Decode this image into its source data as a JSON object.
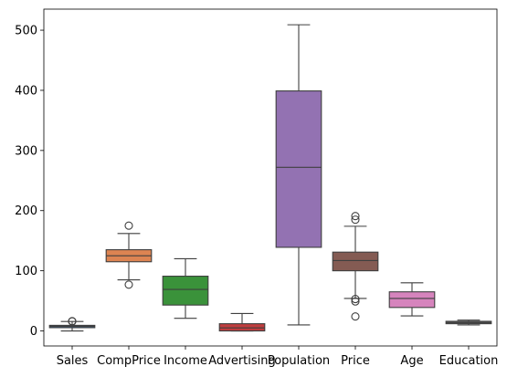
{
  "chart_data": {
    "type": "boxplot",
    "title": "",
    "xlabel": "",
    "ylabel": "",
    "ylim": [
      -25,
      535
    ],
    "yticks": [
      0,
      100,
      200,
      300,
      400,
      500
    ],
    "ytick_labels": [
      "0",
      "100",
      "200",
      "300",
      "400",
      "500"
    ],
    "grid": false,
    "legend": "none",
    "categories": [
      "Sales",
      "CompPrice",
      "Income",
      "Advertising",
      "Population",
      "Price",
      "Age",
      "Education"
    ],
    "boxes": [
      {
        "name": "Sales",
        "color": "#3a6690",
        "whislo": 0,
        "q1": 5.4,
        "med": 7.5,
        "q3": 9.3,
        "whishi": 15.7,
        "fliers": [
          16.3,
          15.8
        ]
      },
      {
        "name": "CompPrice",
        "color": "#dd8452",
        "whislo": 85,
        "q1": 115,
        "med": 125,
        "q3": 135,
        "whishi": 162,
        "fliers": [
          175,
          77
        ]
      },
      {
        "name": "Income",
        "color": "#3a923a",
        "whislo": 21,
        "q1": 43,
        "med": 69,
        "q3": 91,
        "whishi": 120,
        "fliers": []
      },
      {
        "name": "Advertising",
        "color": "#c03d3e",
        "whislo": 0,
        "q1": 0,
        "med": 5,
        "q3": 12,
        "whishi": 29,
        "fliers": []
      },
      {
        "name": "Population",
        "color": "#9372b2",
        "whislo": 10,
        "q1": 139,
        "med": 272,
        "q3": 399,
        "whishi": 509,
        "fliers": []
      },
      {
        "name": "Price",
        "color": "#845b53",
        "whislo": 54,
        "q1": 100,
        "med": 117,
        "q3": 131,
        "whishi": 174,
        "fliers": [
          191,
          185,
          24,
          49,
          53
        ]
      },
      {
        "name": "Age",
        "color": "#d684bd",
        "whislo": 25,
        "q1": 39,
        "med": 54,
        "q3": 65,
        "whishi": 80,
        "fliers": []
      },
      {
        "name": "Education",
        "color": "#6d6d6d",
        "whislo": 10,
        "q1": 12,
        "med": 14,
        "q3": 16,
        "whishi": 18,
        "fliers": []
      }
    ]
  }
}
